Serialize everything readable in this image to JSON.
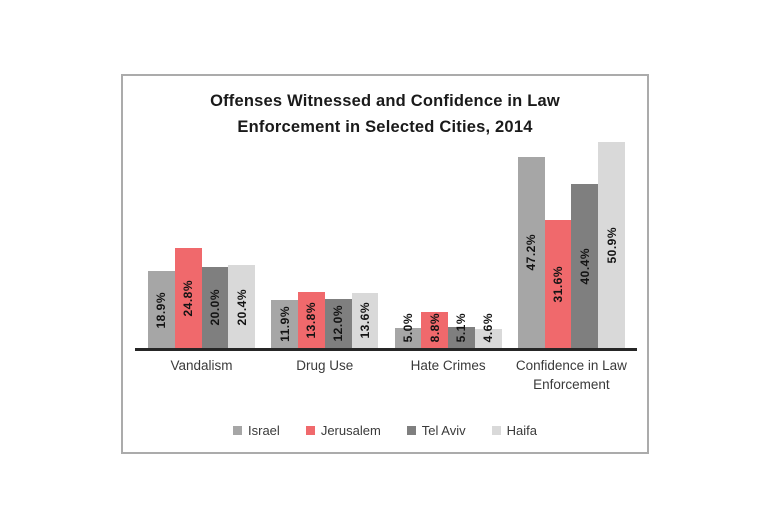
{
  "chart_data": {
    "type": "bar",
    "title": "Offenses Witnessed and Confidence in Law Enforcement in Selected Cities, 2014",
    "title_lines": [
      "Offenses Witnessed and Confidence in Law",
      "Enforcement in Selected Cities, 2014"
    ],
    "categories": [
      "Vandalism",
      "Drug Use",
      "Hate Crimes",
      "Confidence in Law Enforcement"
    ],
    "series": [
      {
        "name": "Israel",
        "color": "#a6a6a6",
        "values": [
          18.9,
          11.9,
          5.0,
          47.2
        ]
      },
      {
        "name": "Jerusalem",
        "color": "#f0696c",
        "values": [
          24.8,
          13.8,
          8.8,
          31.6
        ]
      },
      {
        "name": "Tel Aviv",
        "color": "#7f7f7f",
        "values": [
          20.0,
          12.0,
          5.1,
          40.4
        ]
      },
      {
        "name": "Haifa",
        "color": "#d9d9d9",
        "values": [
          20.4,
          13.6,
          4.6,
          50.9
        ]
      }
    ],
    "value_suffix": "%",
    "data_label_decimals": 1,
    "data_label_orientation": "vertical",
    "legend_position": "bottom",
    "legend_entries": [
      "Israel",
      "Jerusalem",
      "Tel Aviv",
      "Haifa"
    ],
    "y_axis_visible": false,
    "gridlines": false,
    "ylim": [
      0,
      55
    ],
    "xlabel": "",
    "ylabel": "",
    "axis_line_color": "#262626",
    "frame_border_color": "#ababab"
  }
}
